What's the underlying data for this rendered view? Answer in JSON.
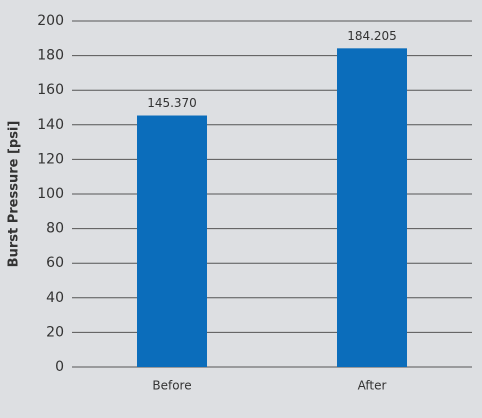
{
  "chart_data": {
    "type": "bar",
    "y_label": "Burst Pressure [psi]",
    "categories": [
      "Before",
      "After"
    ],
    "values": [
      145.37,
      184.205
    ],
    "value_labels": [
      "145.370",
      "184.205"
    ],
    "color": "#0b6dbb",
    "ylim": [
      0,
      200
    ],
    "yticks": [
      0,
      20,
      40,
      60,
      80,
      100,
      120,
      140,
      160,
      180,
      200
    ],
    "grid": true
  }
}
